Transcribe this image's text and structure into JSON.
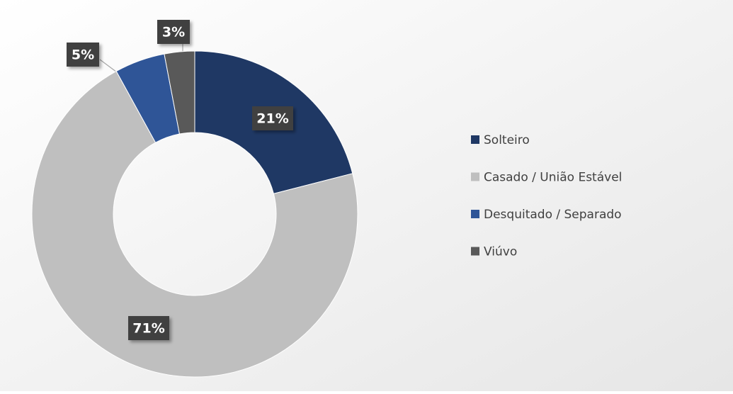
{
  "chart_data": {
    "type": "donut",
    "categories": [
      "Solteiro",
      "Casado / União Estável",
      "Desquitado / Separado",
      "Viúvo"
    ],
    "values": [
      21,
      71,
      5,
      3
    ],
    "value_labels": [
      "21%",
      "71%",
      "5%",
      "3%"
    ],
    "colors": [
      "#1f3864",
      "#bfbfbf",
      "#2f5597",
      "#595959"
    ],
    "legend": "right"
  }
}
